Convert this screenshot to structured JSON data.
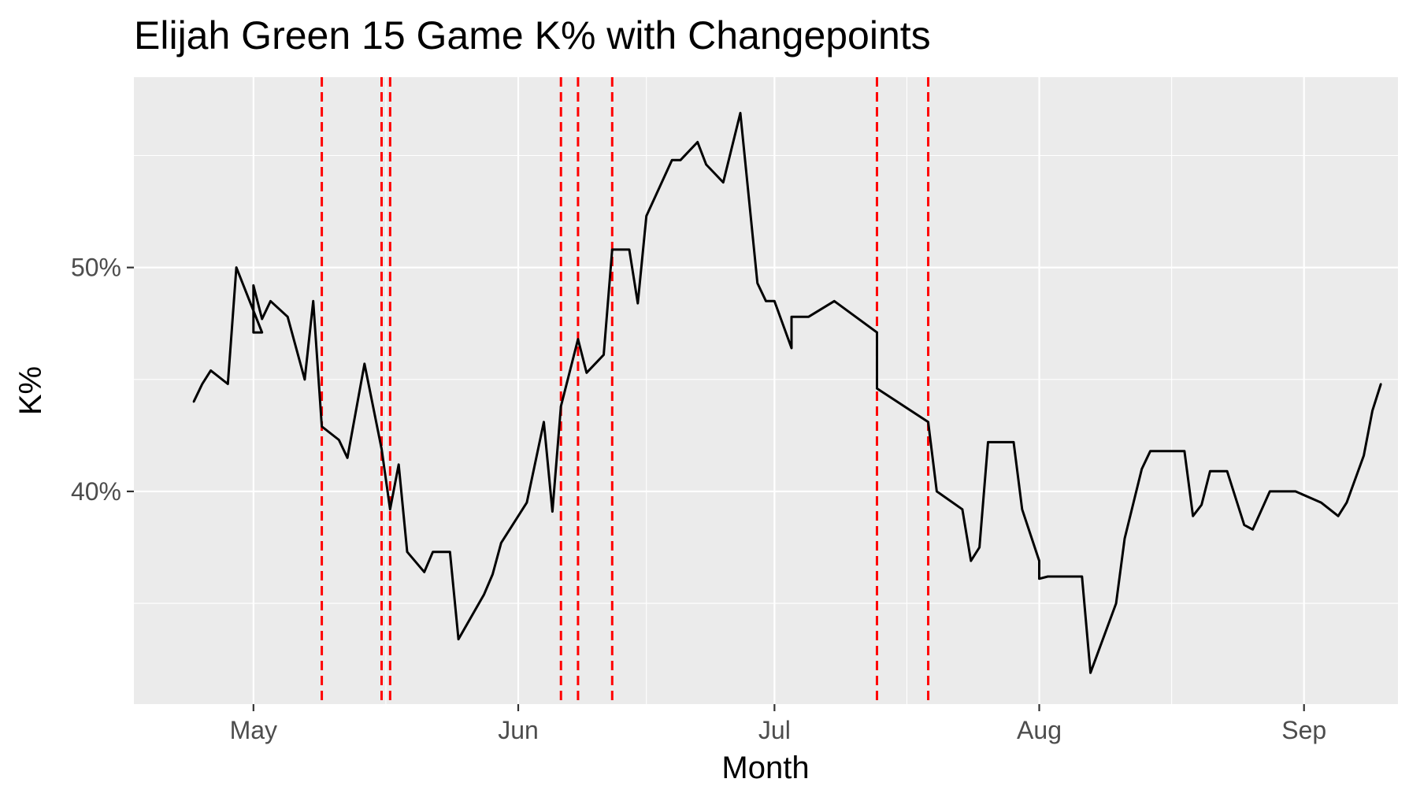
{
  "chart_data": {
    "type": "line",
    "title": "Elijah Green 15 Game K% with Changepoints",
    "xlabel": "Month",
    "ylabel": "K%",
    "x_axis": "date",
    "xlim": [
      "2023-04-17",
      "2023-09-12"
    ],
    "ylim": [
      30.5,
      58.5
    ],
    "grid": true,
    "legend": "none",
    "colors": {
      "line": "#000000",
      "changepoint": "#ff0000",
      "panel": "#ebebeb",
      "grid": "#ffffff"
    },
    "x_ticks": [
      {
        "date": "2023-05-01",
        "label": "May"
      },
      {
        "date": "2023-06-01",
        "label": "Jun"
      },
      {
        "date": "2023-07-01",
        "label": "Jul"
      },
      {
        "date": "2023-08-01",
        "label": "Aug"
      },
      {
        "date": "2023-09-01",
        "label": "Sep"
      }
    ],
    "y_ticks": [
      {
        "value": 40,
        "label": "40%"
      },
      {
        "value": 50,
        "label": "50%"
      }
    ],
    "changepoints": [
      "2023-05-09",
      "2023-05-16",
      "2023-05-17",
      "2023-06-06",
      "2023-06-08",
      "2023-06-12",
      "2023-07-13",
      "2023-07-19"
    ],
    "series": [
      {
        "points": [
          [
            "2023-04-24",
            44.0
          ],
          [
            "2023-04-25",
            44.8
          ],
          [
            "2023-04-26",
            45.4
          ],
          [
            "2023-04-28",
            44.8
          ],
          [
            "2023-04-29",
            50.0
          ],
          [
            "2023-05-02",
            47.1
          ],
          [
            "2023-05-01",
            47.1
          ],
          [
            "2023-05-01",
            49.2
          ],
          [
            "2023-05-02",
            47.7
          ],
          [
            "2023-05-03",
            48.5
          ],
          [
            "2023-05-05",
            47.8
          ],
          [
            "2023-05-07",
            45.0
          ],
          [
            "2023-05-08",
            48.5
          ],
          [
            "2023-05-09",
            42.9
          ],
          [
            "2023-05-11",
            42.3
          ],
          [
            "2023-05-12",
            41.5
          ],
          [
            "2023-05-14",
            45.7
          ],
          [
            "2023-05-16",
            41.9
          ],
          [
            "2023-05-17",
            39.2
          ],
          [
            "2023-05-18",
            41.2
          ],
          [
            "2023-05-19",
            37.3
          ],
          [
            "2023-05-21",
            36.4
          ],
          [
            "2023-05-22",
            37.3
          ],
          [
            "2023-05-24",
            37.3
          ],
          [
            "2023-05-25",
            33.4
          ],
          [
            "2023-05-28",
            35.4
          ],
          [
            "2023-05-29",
            36.3
          ],
          [
            "2023-05-30",
            37.7
          ],
          [
            "2023-06-02",
            39.5
          ],
          [
            "2023-06-04",
            43.1
          ],
          [
            "2023-06-05",
            39.1
          ],
          [
            "2023-06-06",
            43.8
          ],
          [
            "2023-06-08",
            46.8
          ],
          [
            "2023-06-09",
            45.3
          ],
          [
            "2023-06-11",
            46.1
          ],
          [
            "2023-06-12",
            50.8
          ],
          [
            "2023-06-14",
            50.8
          ],
          [
            "2023-06-15",
            48.4
          ],
          [
            "2023-06-16",
            52.3
          ],
          [
            "2023-06-19",
            54.8
          ],
          [
            "2023-06-20",
            54.8
          ],
          [
            "2023-06-22",
            55.6
          ],
          [
            "2023-06-23",
            54.6
          ],
          [
            "2023-06-25",
            53.8
          ],
          [
            "2023-06-27",
            56.9
          ],
          [
            "2023-06-29",
            49.3
          ],
          [
            "2023-06-30",
            48.5
          ],
          [
            "2023-07-01",
            48.5
          ],
          [
            "2023-07-03",
            46.4
          ],
          [
            "2023-07-03",
            47.8
          ],
          [
            "2023-07-05",
            47.8
          ],
          [
            "2023-07-08",
            48.5
          ],
          [
            "2023-07-13",
            47.1
          ],
          [
            "2023-07-13",
            44.6
          ],
          [
            "2023-07-19",
            43.1
          ],
          [
            "2023-07-20",
            40.0
          ],
          [
            "2023-07-23",
            39.2
          ],
          [
            "2023-07-24",
            36.9
          ],
          [
            "2023-07-25",
            37.5
          ],
          [
            "2023-07-26",
            42.2
          ],
          [
            "2023-07-29",
            42.2
          ],
          [
            "2023-07-30",
            39.2
          ],
          [
            "2023-08-01",
            36.9
          ],
          [
            "2023-08-01",
            36.1
          ],
          [
            "2023-08-02",
            36.2
          ],
          [
            "2023-08-06",
            36.2
          ],
          [
            "2023-08-07",
            31.9
          ],
          [
            "2023-08-10",
            35.0
          ],
          [
            "2023-08-11",
            37.9
          ],
          [
            "2023-08-13",
            41.0
          ],
          [
            "2023-08-14",
            41.8
          ],
          [
            "2023-08-18",
            41.8
          ],
          [
            "2023-08-19",
            38.9
          ],
          [
            "2023-08-20",
            39.4
          ],
          [
            "2023-08-21",
            40.9
          ],
          [
            "2023-08-23",
            40.9
          ],
          [
            "2023-08-25",
            38.5
          ],
          [
            "2023-08-26",
            38.3
          ],
          [
            "2023-08-28",
            40.0
          ],
          [
            "2023-08-31",
            40.0
          ],
          [
            "2023-09-03",
            39.5
          ],
          [
            "2023-09-05",
            38.9
          ],
          [
            "2023-09-06",
            39.5
          ],
          [
            "2023-09-08",
            41.6
          ],
          [
            "2023-09-09",
            43.6
          ],
          [
            "2023-09-10",
            44.8
          ]
        ]
      }
    ]
  }
}
